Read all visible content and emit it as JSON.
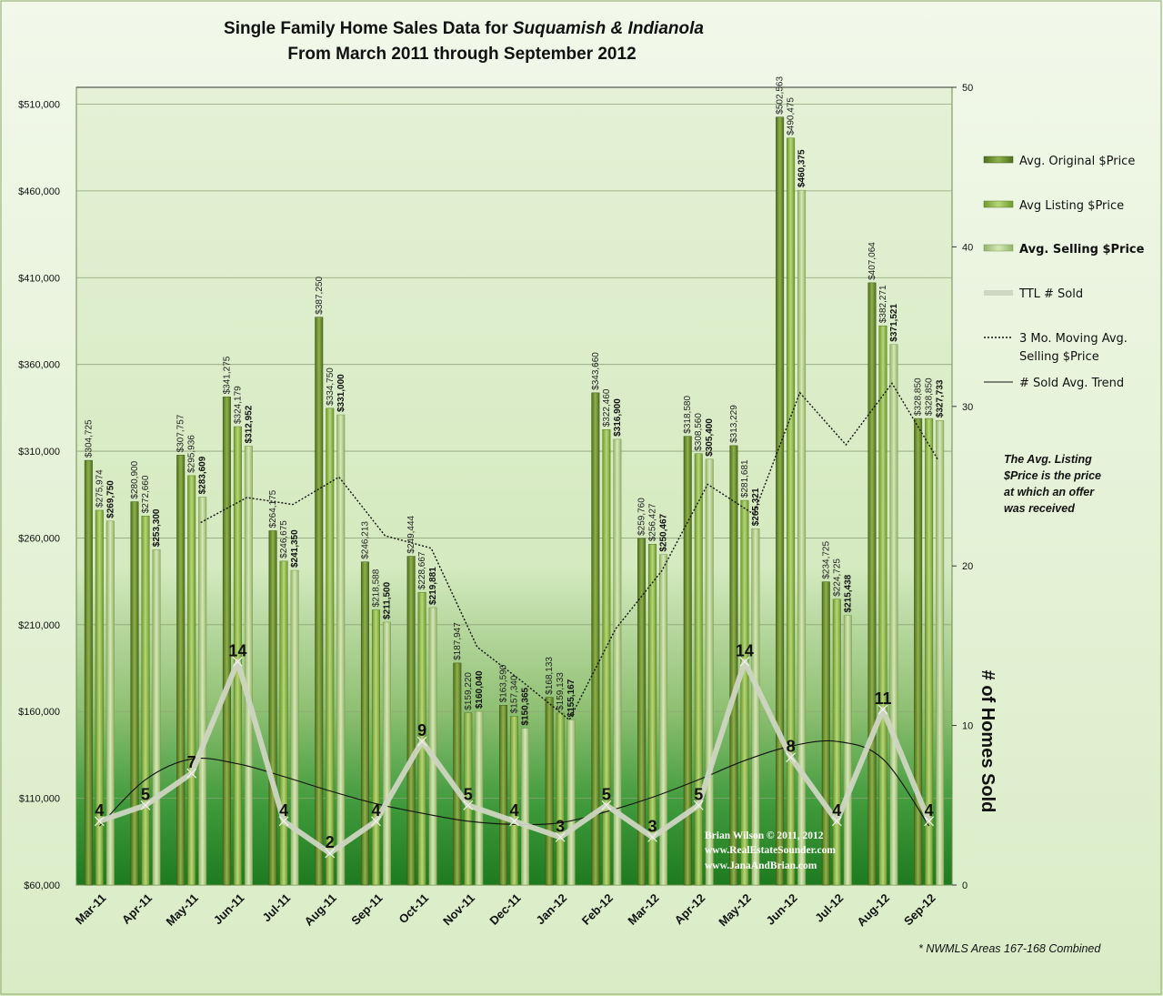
{
  "chart_data": {
    "type": "bar",
    "title_prefix": "Single Family Home Sales Data for ",
    "title_italic": "Suquamish & Indianola",
    "subtitle": "From March 2011 through September 2012",
    "categories": [
      "Mar-11",
      "Apr-11",
      "May-11",
      "Jun-11",
      "Jul-11",
      "Aug-11",
      "Sep-11",
      "Oct-11",
      "Nov-11",
      "Dec-11",
      "Jan-12",
      "Feb-12",
      "Mar-12",
      "Apr-12",
      "May-12",
      "Jun-12",
      "Jul-12",
      "Aug-12",
      "Sep-12"
    ],
    "series": [
      {
        "name": "Avg. Original $Price",
        "values": [
          304725,
          280900,
          307757,
          341275,
          264175,
          387250,
          246213,
          249444,
          187947,
          163590,
          168133,
          343660,
          259760,
          318580,
          313229,
          502563,
          234725,
          407064,
          328850
        ],
        "color": "#5a7d22"
      },
      {
        "name": "Avg Listing $Price",
        "values": [
          275974,
          272660,
          295936,
          324179,
          246675,
          334750,
          218588,
          228667,
          159220,
          157340,
          159133,
          322460,
          256427,
          308560,
          281681,
          490475,
          224725,
          382271,
          328850
        ],
        "color": "#7ea734"
      },
      {
        "name": "Avg. Selling $Price",
        "values": [
          269750,
          253300,
          283609,
          312952,
          241350,
          331000,
          211500,
          219881,
          160040,
          150365,
          155167,
          316900,
          250467,
          305400,
          265321,
          460375,
          215438,
          371521,
          327733
        ],
        "color": "#a8c77a"
      }
    ],
    "moving_avg": {
      "name": "3 Mo. Moving Avg. Selling $Price",
      "values": [
        null,
        null,
        268886,
        283287,
        279304,
        295101,
        261283,
        254127,
        197140,
        176762,
        155191,
        207477,
        240845,
        290922,
        273729,
        343699,
        313711,
        349111,
        304897
      ]
    },
    "ttl_sold": {
      "name": "TTL # Sold",
      "values": [
        4,
        5,
        7,
        14,
        4,
        2,
        4,
        9,
        5,
        4,
        3,
        5,
        3,
        5,
        14,
        8,
        4,
        11,
        4
      ]
    },
    "trend": {
      "name": "# Sold Avg. Trend",
      "values": [
        3.7,
        6.6,
        7.9,
        7.6,
        6.8,
        5.9,
        5.1,
        4.5,
        4.0,
        3.8,
        3.9,
        4.6,
        5.5,
        6.6,
        7.8,
        8.7,
        9.0,
        7.9,
        3.7
      ]
    },
    "ylim": [
      60000,
      510000
    ],
    "y_ticks": [
      "$60,000",
      "$110,000",
      "$160,000",
      "$210,000",
      "$260,000",
      "$310,000",
      "$360,000",
      "$410,000",
      "$460,000",
      "$510,000"
    ],
    "y2lim": [
      0,
      50
    ],
    "y2_ticks": [
      "0",
      "10",
      "20",
      "30",
      "40",
      "50"
    ],
    "y2label": "# of Homes Sold",
    "price_labels": [
      [
        "$304,725",
        "$275,974",
        "$269,750"
      ],
      [
        "$280,900",
        "$272,660",
        "$253,300"
      ],
      [
        "$307,757",
        "$295,936",
        "$283,609"
      ],
      [
        "$341,275",
        "$324,179",
        "$312,952"
      ],
      [
        "$264,175",
        "$246,675",
        "$241,350"
      ],
      [
        "$387,250",
        "$334,750",
        "$331,000"
      ],
      [
        "$246,213",
        "$218,588",
        "$211,500"
      ],
      [
        "$249,444",
        "$228,667",
        "$219,881"
      ],
      [
        "$187,947",
        "$159,220",
        "$160,040"
      ],
      [
        "$163,590",
        "$157,340",
        "$150,365"
      ],
      [
        "$168,133",
        "$159,133",
        "$155,167"
      ],
      [
        "$343,660",
        "$322,460",
        "$316,900"
      ],
      [
        "$259,760",
        "$256,427",
        "$250,467"
      ],
      [
        "$318,580",
        "$308,560",
        "$305,400"
      ],
      [
        "$313,229",
        "$281,681",
        "$265,321"
      ],
      [
        "$502,563",
        "$490,475",
        "$460,375"
      ],
      [
        "$234,725",
        "$224,725",
        "$215,438"
      ],
      [
        "$407,064",
        "$382,271",
        "$371,521"
      ],
      [
        "$328,850",
        "$328,850",
        "$327,733"
      ]
    ],
    "legend": [
      "Avg. Original $Price",
      "Avg Listing $Price",
      "Avg. Selling $Price",
      "TTL # Sold",
      "3 Mo. Moving Avg.",
      "Selling $Price",
      "# Sold Avg. Trend"
    ],
    "legend_placement": "right",
    "grid": true
  },
  "note_lines": [
    "The Avg. Listing",
    "$Price is the price",
    "at which an offer",
    "was received"
  ],
  "credit_lines": [
    "Brian Wilson  © 2011, 2012",
    "www.RealEstateSounder.com",
    "www.JanaAndBrian.com"
  ],
  "footer": "* NWMLS Areas 167-168 Combined"
}
